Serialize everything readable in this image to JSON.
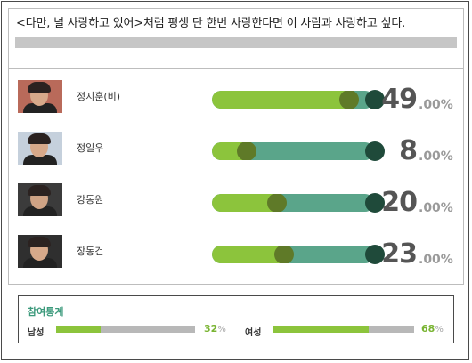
{
  "question": "<다만, 널 사랑하고 있어>처럼 평생 단 한번 사랑한다면 이 사람과 사랑하고 싶다.",
  "candidates": [
    {
      "name": "정지훈(비)",
      "percent_int": "49",
      "percent_dec": ".00%",
      "value": 49
    },
    {
      "name": "정일우",
      "percent_int": "8",
      "percent_dec": ".00%",
      "value": 8
    },
    {
      "name": "강동원",
      "percent_int": "20",
      "percent_dec": ".00%",
      "value": 20
    },
    {
      "name": "장동건",
      "percent_int": "23",
      "percent_dec": ".00%",
      "value": 23
    }
  ],
  "stats": {
    "title": "참여통계",
    "male_label": "남성",
    "male_value": "32",
    "male_unit": "%",
    "male_fraction": 0.32,
    "female_label": "여성",
    "female_value": "68",
    "female_unit": "%",
    "female_fraction": 0.68
  },
  "colors": {
    "fill": "#8cc43c",
    "track": "#5aa58a",
    "knob": "#5f7a28",
    "endcap": "#1f4a3a",
    "stats_title": "#3c9a7c"
  }
}
